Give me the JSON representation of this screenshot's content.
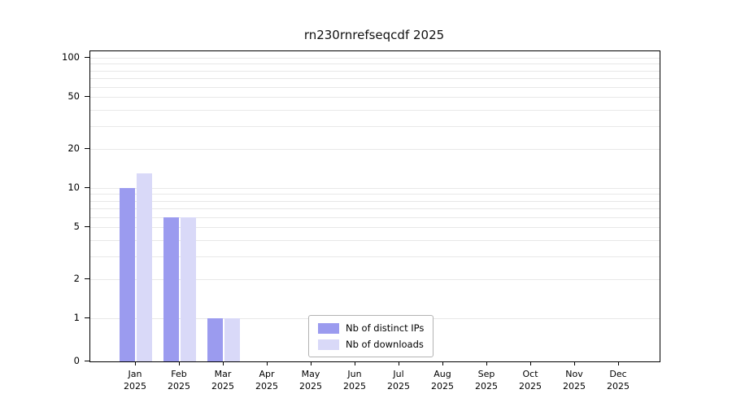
{
  "chart_data": {
    "type": "bar",
    "title": "rn230rnrefseqcdf 2025",
    "categories": [
      "Jan",
      "Feb",
      "Mar",
      "Apr",
      "May",
      "Jun",
      "Jul",
      "Aug",
      "Sep",
      "Oct",
      "Nov",
      "Dec"
    ],
    "year_label": "2025",
    "series": [
      {
        "name": "Nb of distinct IPs",
        "color": "#9b9bef",
        "values": [
          10,
          6,
          1,
          0,
          0,
          0,
          0,
          0,
          0,
          0,
          0,
          0
        ]
      },
      {
        "name": "Nb of downloads",
        "color": "#d9d9f8",
        "values": [
          13,
          6,
          1,
          0,
          0,
          0,
          0,
          0,
          0,
          0,
          0,
          0
        ]
      }
    ],
    "xlabel": "",
    "ylabel": "",
    "yscale": "log",
    "yticks": [
      0,
      1,
      2,
      5,
      10,
      20,
      50,
      100
    ],
    "ylim": [
      0,
      100
    ],
    "grid": "horizontal-log-minor",
    "legend_position": "bottom-center"
  }
}
